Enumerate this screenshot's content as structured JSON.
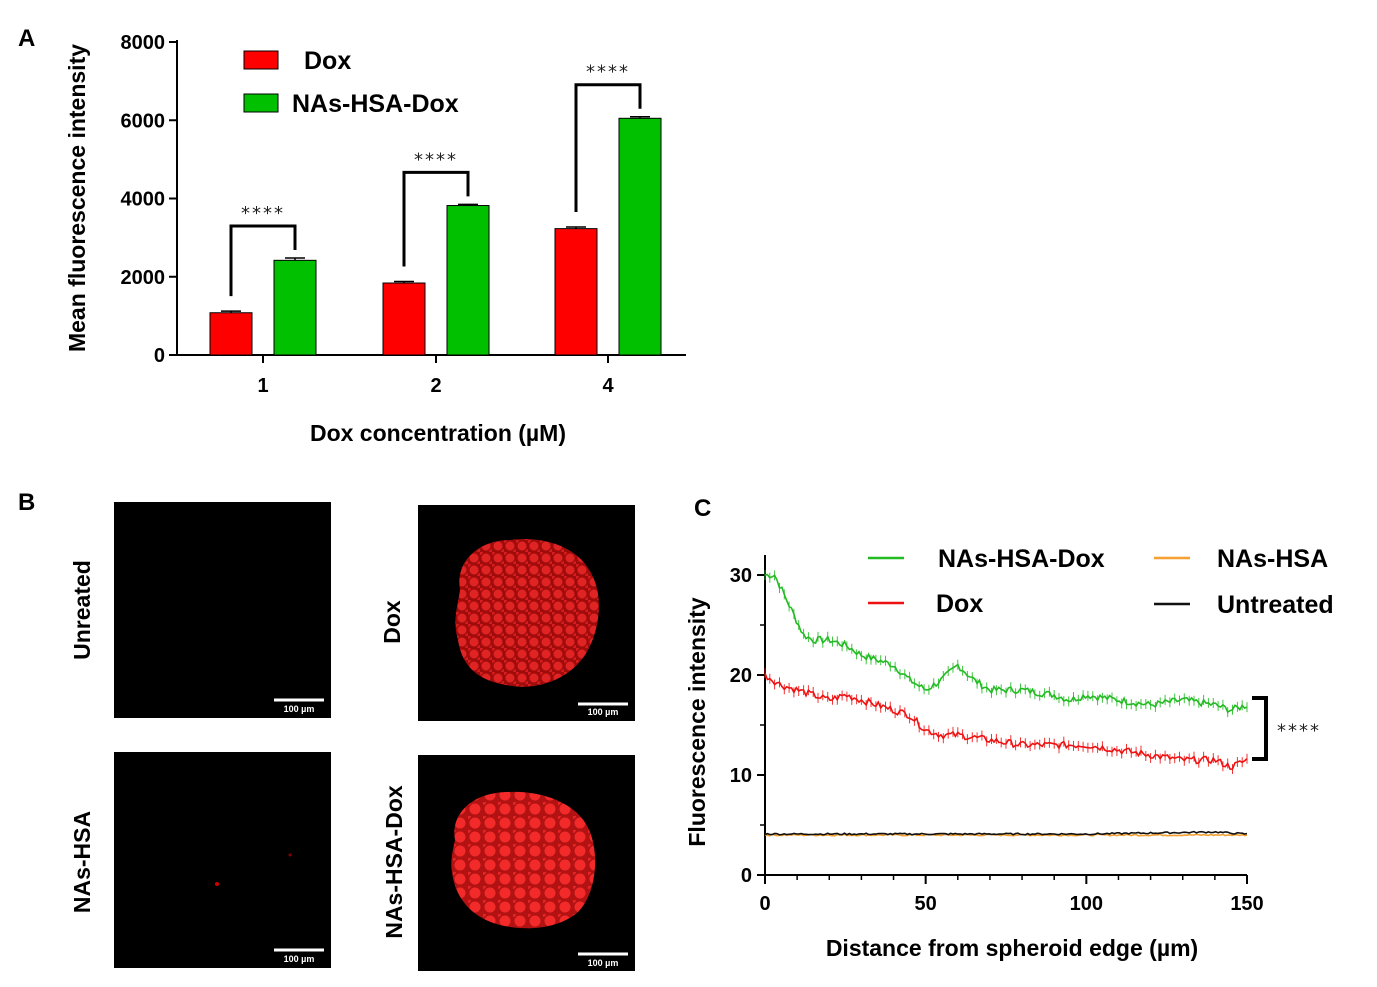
{
  "chart_data": [
    {
      "panel": "A",
      "type": "bar",
      "categories": [
        "1",
        "2",
        "4"
      ],
      "series": [
        {
          "name": "Dox",
          "color": "#ff0000",
          "values": [
            1080,
            1840,
            3230
          ],
          "errors": [
            40,
            40,
            40
          ]
        },
        {
          "name": "NAs-HSA-Dox",
          "color": "#00c000",
          "values": [
            2420,
            3820,
            6050
          ],
          "errors": [
            60,
            30,
            40
          ]
        }
      ],
      "xlabel": "Dox concentration (µM)",
      "ylabel": "Mean fluorescence intensity",
      "ylim": [
        0,
        8000
      ],
      "yticks": [
        "0",
        "2000",
        "4000",
        "6000",
        "8000"
      ],
      "annotations": [
        "****",
        "****",
        "****"
      ]
    },
    {
      "panel": "C",
      "type": "line",
      "xlabel": "Distance from spheroid  edge (µm)",
      "ylabel": "Fluorescence intensity",
      "xlim": [
        0,
        150
      ],
      "ylim": [
        0,
        32
      ],
      "xticks": [
        "0",
        "50",
        "100",
        "150"
      ],
      "yticks": [
        "0",
        "10",
        "20",
        "30"
      ],
      "annotation": "****",
      "series": [
        {
          "name": "NAs-HSA-Dox",
          "color": "#22bb22",
          "x": [
            0,
            3,
            6,
            9,
            12,
            15,
            20,
            25,
            30,
            35,
            40,
            45,
            50,
            55,
            60,
            65,
            70,
            80,
            90,
            95,
            100,
            110,
            120,
            130,
            140,
            145,
            150
          ],
          "y": [
            30,
            30,
            28,
            26,
            24,
            23.5,
            23.5,
            23,
            22,
            21.5,
            21,
            19.5,
            18.5,
            19.5,
            21,
            19.5,
            18.5,
            18.5,
            18,
            17.5,
            18,
            17.5,
            17,
            17.5,
            17,
            16.5,
            17
          ]
        },
        {
          "name": "NAs-HSA",
          "color": "#f5a030",
          "x": [
            0,
            50,
            100,
            150
          ],
          "y": [
            4,
            4,
            4,
            4
          ]
        },
        {
          "name": "Dox",
          "color": "#ee1111",
          "x": [
            0,
            5,
            10,
            15,
            20,
            25,
            30,
            35,
            40,
            45,
            50,
            55,
            60,
            70,
            80,
            90,
            100,
            110,
            120,
            130,
            140,
            145,
            150
          ],
          "y": [
            20,
            19,
            18.5,
            18,
            17.5,
            18,
            17.5,
            17,
            16.5,
            16,
            14.5,
            14,
            14,
            13.5,
            13,
            13,
            13,
            12.5,
            12,
            11.5,
            11.5,
            10.8,
            11.5
          ]
        },
        {
          "name": "Untreated",
          "color": "#111111",
          "x": [
            0,
            50,
            100,
            140,
            150
          ],
          "y": [
            4.1,
            4.1,
            4.1,
            4.3,
            4.1
          ]
        }
      ]
    }
  ],
  "panels": {
    "a": "A",
    "b": "B",
    "c": "C"
  },
  "images": [
    {
      "label": "Unreated",
      "scale_bar": "100 µm"
    },
    {
      "label": "Dox",
      "scale_bar": "100 µm"
    },
    {
      "label": "NAs-HSA",
      "scale_bar": "100 µm"
    },
    {
      "label": "NAs-HSA-Dox",
      "scale_bar": "100 µm"
    }
  ]
}
